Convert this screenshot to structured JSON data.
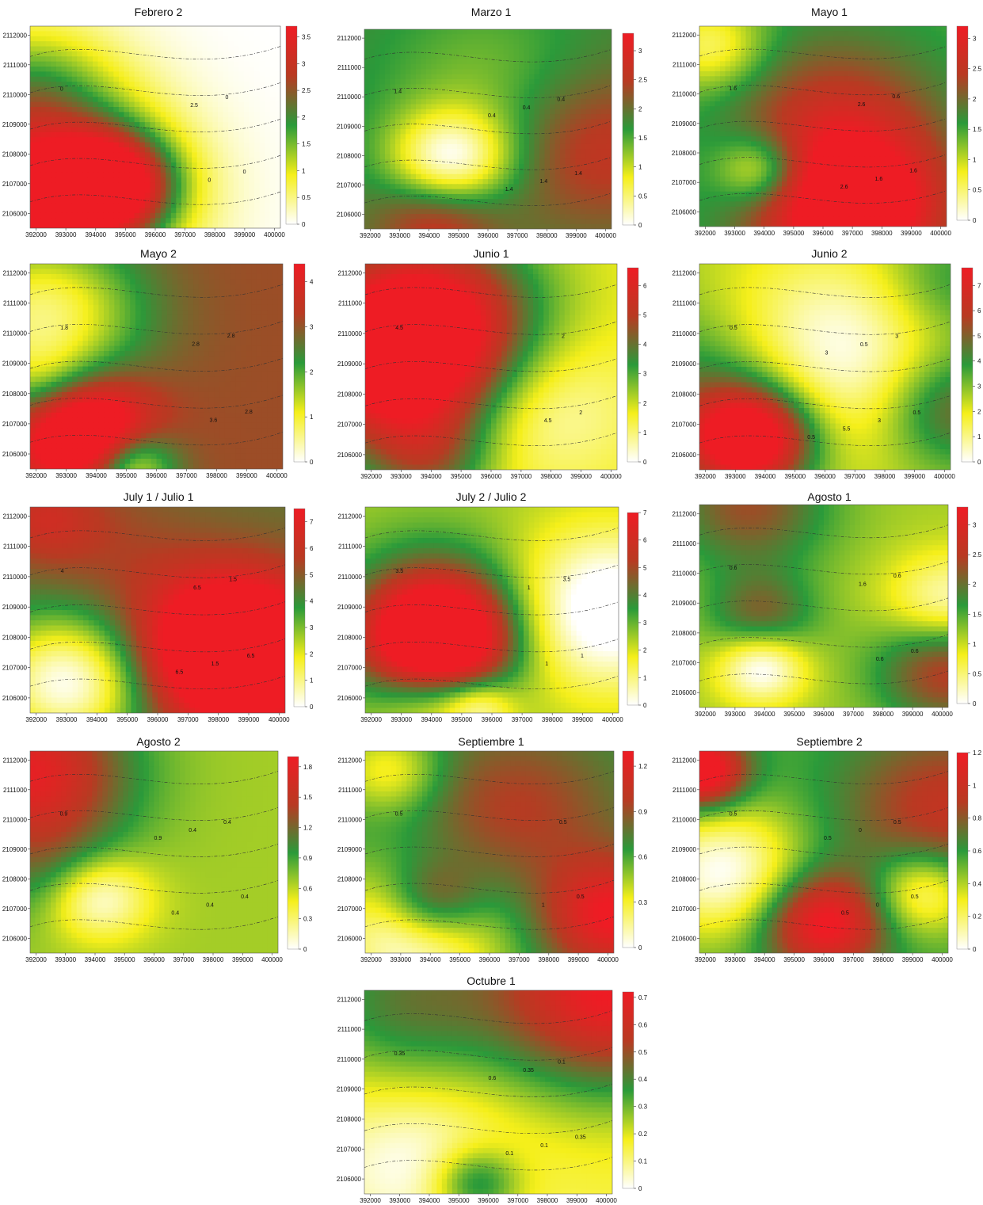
{
  "chart_data": {
    "type": "heatmap",
    "x_ticks": [
      "392000",
      "393000",
      "394000",
      "395000",
      "396000",
      "397000",
      "398000",
      "399000",
      "400000"
    ],
    "y_ticks": [
      "2112000",
      "2111000",
      "2110000",
      "2109000",
      "2108000",
      "2107000",
      "2106000"
    ],
    "xlim": [
      391800,
      400200
    ],
    "ylim": [
      2105500,
      2112300
    ],
    "colorscale": [
      "#ffffff",
      "#f5ef1a",
      "#2a9a3a",
      "#b83a22",
      "#ee1c24"
    ],
    "panels": [
      {
        "title": "Febrero 2",
        "cbar_ticks": [
          "0",
          "0.5",
          "1",
          "1.5",
          "2",
          "2.5",
          "3",
          "3.5"
        ],
        "cbar_values": [
          0,
          0.5,
          1,
          1.5,
          2,
          2.5,
          3,
          3.5
        ],
        "vmax": 3.7,
        "contour_labels": [
          "0",
          "0",
          "0",
          "0",
          "2.5"
        ]
      },
      {
        "title": "Marzo 1",
        "cbar_ticks": [
          "0",
          "0.5",
          "1",
          "1.5",
          "2",
          "2.5",
          "3"
        ],
        "cbar_values": [
          0,
          0.5,
          1,
          1.5,
          2,
          2.5,
          3
        ],
        "vmax": 3.3,
        "contour_labels": [
          "1.4",
          "1.4",
          "0.4",
          "1.4",
          "0.4",
          "1.4",
          "0.4"
        ]
      },
      {
        "title": "Mayo 1",
        "cbar_ticks": [
          "0",
          "0.5",
          "1",
          "1.5",
          "2",
          "2.5",
          "3"
        ],
        "cbar_values": [
          0,
          0.5,
          1,
          1.5,
          2,
          2.5,
          3
        ],
        "vmax": 3.2,
        "contour_labels": [
          "1.6",
          "1.6",
          "0.6",
          "1.6",
          "2.6",
          "2.6"
        ]
      },
      {
        "title": "Mayo 2",
        "cbar_ticks": [
          "0",
          "1",
          "2",
          "3",
          "4"
        ],
        "cbar_values": [
          0,
          1,
          2,
          3,
          4
        ],
        "vmax": 4.4,
        "contour_labels": [
          "1.8",
          "2.8",
          "2.8",
          "3.6",
          "2.8"
        ]
      },
      {
        "title": "Junio 1",
        "cbar_ticks": [
          "0",
          "1",
          "2",
          "3",
          "4",
          "5",
          "6"
        ],
        "cbar_values": [
          0,
          1,
          2,
          3,
          4,
          5,
          6
        ],
        "vmax": 6.6,
        "contour_labels": [
          "4.5",
          "2",
          "2",
          "4.5"
        ]
      },
      {
        "title": "Junio 2",
        "cbar_ticks": [
          "0",
          "1",
          "2",
          "3",
          "4",
          "5",
          "6",
          "7"
        ],
        "cbar_values": [
          0,
          1,
          2,
          3,
          4,
          5,
          6,
          7
        ],
        "vmax": 7.7,
        "contour_labels": [
          "0.5",
          "0.5",
          "3",
          "3",
          "0.5",
          "5.5",
          "3",
          "0.5"
        ]
      },
      {
        "title": "July 1 / Julio 1",
        "cbar_ticks": [
          "0",
          "1",
          "2",
          "3",
          "4",
          "5",
          "6",
          "7"
        ],
        "cbar_values": [
          0,
          1,
          2,
          3,
          4,
          5,
          6,
          7
        ],
        "vmax": 7.5,
        "contour_labels": [
          "4",
          "6.5",
          "1.5",
          "1.5",
          "6.5",
          "6.5"
        ]
      },
      {
        "title": "July 2 / Julio 2",
        "cbar_ticks": [
          "0",
          "1",
          "2",
          "3",
          "4",
          "5",
          "6",
          "7"
        ],
        "cbar_values": [
          0,
          1,
          2,
          3,
          4,
          5,
          6,
          7
        ],
        "vmax": 7,
        "contour_labels": [
          "3.5",
          "1",
          "3.5",
          "1",
          "1"
        ]
      },
      {
        "title": "Agosto 1",
        "cbar_ticks": [
          "0",
          "0.5",
          "1",
          "1.5",
          "2",
          "2.5",
          "3"
        ],
        "cbar_values": [
          0,
          0.5,
          1,
          1.5,
          2,
          2.5,
          3
        ],
        "vmax": 3.3,
        "contour_labels": [
          "0.6",
          "0.6",
          "0.6",
          "0.6",
          "1.6"
        ]
      },
      {
        "title": "Agosto 2",
        "cbar_ticks": [
          "0",
          "0.3",
          "0.6",
          "0.9",
          "1.2",
          "1.5",
          "1.8"
        ],
        "cbar_values": [
          0,
          0.3,
          0.6,
          0.9,
          1.2,
          1.5,
          1.8
        ],
        "vmax": 1.9,
        "contour_labels": [
          "0.9",
          "0.4",
          "0.4",
          "0.4",
          "0.4",
          "0.4",
          "0.9"
        ]
      },
      {
        "title": "Septiembre 1",
        "cbar_ticks": [
          "0",
          "0.3",
          "0.6",
          "0.9",
          "1.2"
        ],
        "cbar_values": [
          0,
          0.3,
          0.6,
          0.9,
          1.2
        ],
        "vmax": 1.3,
        "contour_labels": [
          "0.5",
          "0.5",
          "0.5",
          "1"
        ]
      },
      {
        "title": "Septiembre 2",
        "cbar_ticks": [
          "0",
          "0.2",
          "0.4",
          "0.6",
          "0.8",
          "1",
          "1.2"
        ],
        "cbar_values": [
          0,
          0.2,
          0.4,
          0.6,
          0.8,
          1,
          1.2
        ],
        "vmax": 1.2,
        "contour_labels": [
          "0.5",
          "0.5",
          "0.5",
          "0",
          "0",
          "0.5",
          "0.5"
        ]
      },
      {
        "title": "Octubre 1",
        "cbar_ticks": [
          "0",
          "0.1",
          "0.2",
          "0.3",
          "0.4",
          "0.5",
          "0.6",
          "0.7"
        ],
        "cbar_values": [
          0,
          0.1,
          0.2,
          0.3,
          0.4,
          0.5,
          0.6,
          0.7
        ],
        "vmax": 0.72,
        "contour_labels": [
          "0.35",
          "0.35",
          "0.1",
          "0.1",
          "0.35",
          "0.1",
          "0.6"
        ]
      }
    ]
  }
}
